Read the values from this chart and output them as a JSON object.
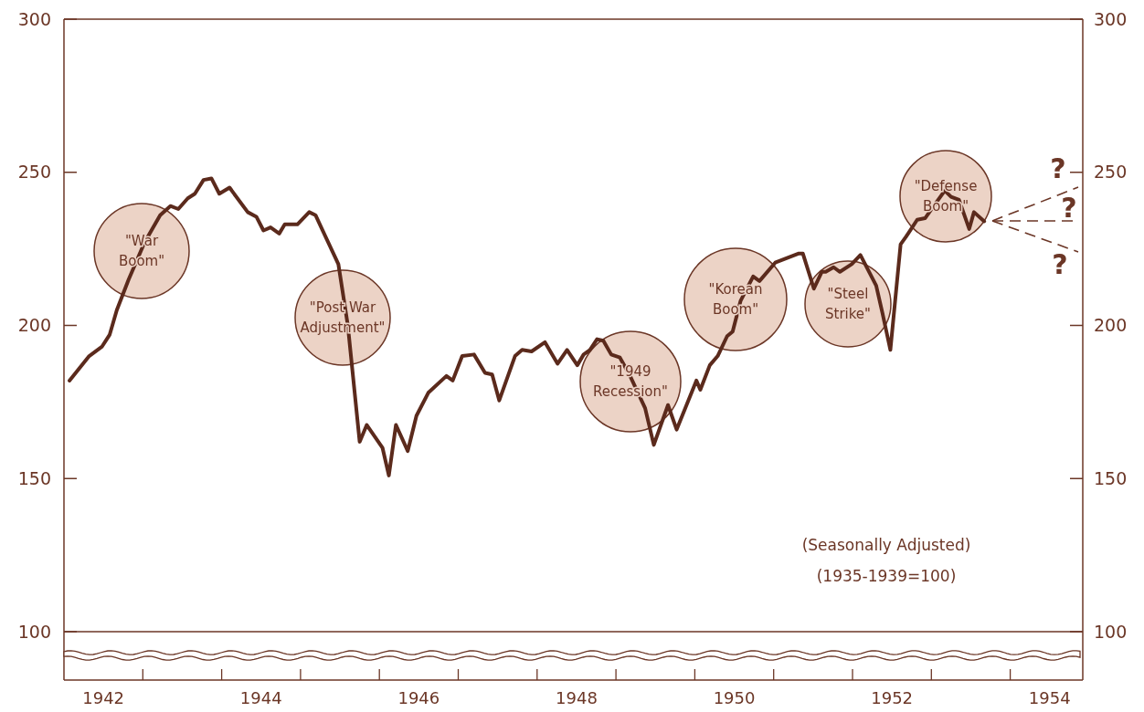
{
  "chart_data": {
    "type": "line",
    "x": [
      1942.07,
      1942.32,
      1942.48,
      1942.58,
      1942.67,
      1942.82,
      1943.02,
      1943.22,
      1943.35,
      1943.45,
      1943.57,
      1943.66,
      1943.77,
      1943.87,
      1943.97,
      1944.1,
      1944.33,
      1944.44,
      1944.53,
      1944.62,
      1944.73,
      1944.8,
      1944.96,
      1945.11,
      1945.19,
      1945.48,
      1945.6,
      1945.75,
      1945.84,
      1946.04,
      1946.12,
      1946.21,
      1946.36,
      1946.47,
      1946.62,
      1946.85,
      1946.93,
      1947.05,
      1947.2,
      1947.34,
      1947.43,
      1947.52,
      1947.72,
      1947.81,
      1947.93,
      1948.1,
      1948.26,
      1948.38,
      1948.51,
      1948.59,
      1948.67,
      1948.76,
      1948.84,
      1948.94,
      1949.05,
      1949.17,
      1949.37,
      1949.48,
      1949.66,
      1949.77,
      1950.02,
      1950.07,
      1950.19,
      1950.29,
      1950.41,
      1950.48,
      1950.58,
      1950.74,
      1950.82,
      1951.02,
      1951.32,
      1951.37,
      1951.51,
      1951.61,
      1951.66,
      1951.76,
      1951.84,
      1951.99,
      1952.1,
      1952.3,
      1952.38,
      1952.48,
      1952.61,
      1952.68,
      1952.82,
      1952.92,
      1953.03,
      1953.17,
      1953.25,
      1953.35,
      1953.48,
      1953.54,
      1953.67
    ],
    "series": [
      {
        "color": "#5b2a1c",
        "values": [
          182,
          190,
          193,
          197,
          205,
          215,
          227,
          236,
          239,
          238,
          241.5,
          243,
          247.5,
          248,
          243,
          245,
          237,
          235.5,
          231,
          232,
          230,
          233,
          233,
          237,
          236,
          220,
          200,
          162,
          167.5,
          160,
          151,
          167.5,
          159,
          170.5,
          178,
          183.5,
          182,
          190,
          190.5,
          184.5,
          184,
          175.5,
          190,
          192,
          191.5,
          194.5,
          187.5,
          192,
          187,
          190.5,
          192,
          195.5,
          195,
          190.5,
          189.5,
          184,
          173,
          161,
          174,
          166,
          182,
          179,
          187,
          190,
          196.5,
          198,
          208,
          216,
          214.5,
          220.5,
          223.5,
          223.5,
          212,
          217.5,
          217.5,
          219,
          217.5,
          220,
          223,
          213,
          204,
          192,
          226.5,
          229,
          234.5,
          235,
          239,
          244,
          242,
          241,
          231.5,
          237,
          234
        ]
      }
    ],
    "xlim": [
      1942,
      1954.92
    ],
    "xticks": [
      {
        "value": 1942.5,
        "label": "1942"
      },
      {
        "value": 1944.5,
        "label": "1944"
      },
      {
        "value": 1946.5,
        "label": "1946"
      },
      {
        "value": 1948.5,
        "label": "1948"
      },
      {
        "value": 1950.5,
        "label": "1950"
      },
      {
        "value": 1952.5,
        "label": "1952"
      },
      {
        "value": 1954.5,
        "label": "1954"
      }
    ],
    "ylim": [
      100,
      300
    ],
    "yticks": [
      100,
      150,
      200,
      250,
      300
    ],
    "y2lim": [
      100,
      300
    ],
    "y2ticks": [
      100,
      150,
      200,
      250,
      300
    ],
    "annotations": [
      "\"War\nBoom\"",
      "\"Post War\nAdjustment\"",
      "\"1949\nRecession\"",
      "\"Korean\nBoom\"",
      "\"Steel\nStrike\"",
      "\"Defense\nBoom\"",
      "?",
      "?",
      "?",
      "(Seasonally Adjusted)",
      "(1935-1939=100)"
    ],
    "grid": false,
    "marker": "none",
    "line_style": "solid"
  }
}
